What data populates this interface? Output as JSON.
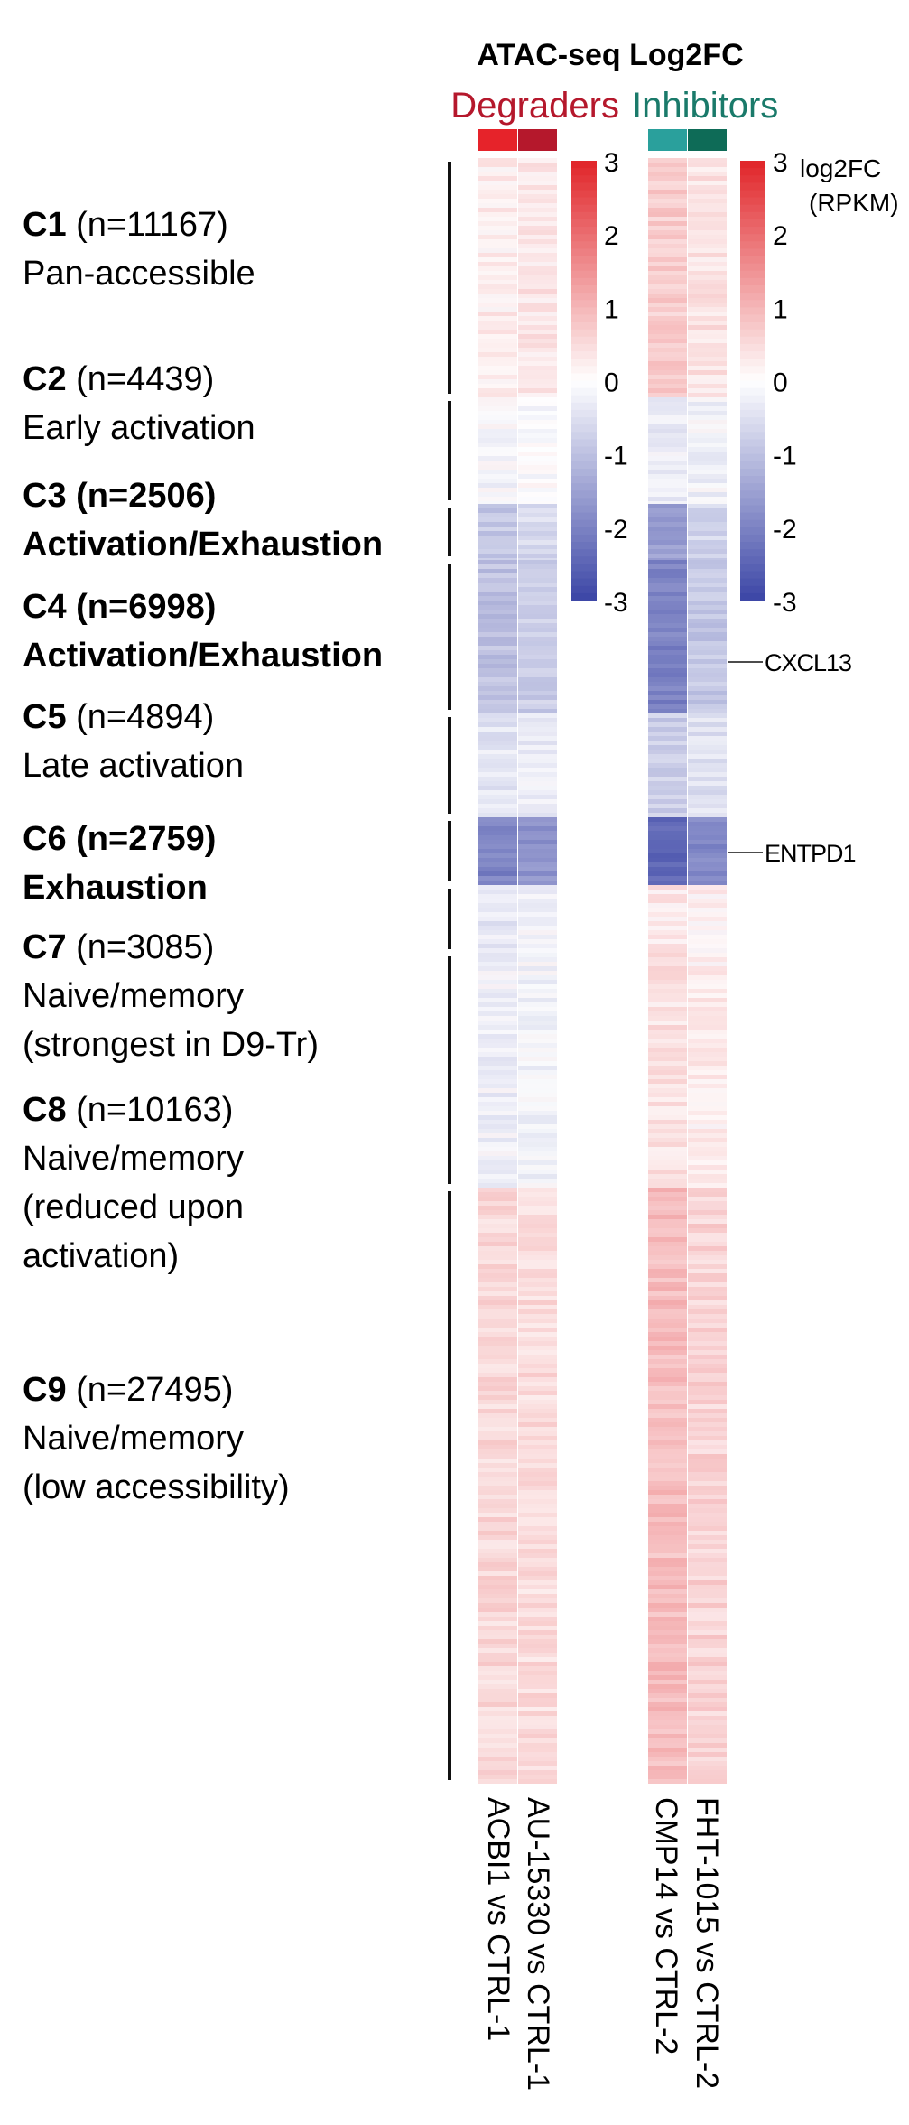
{
  "chart_data": {
    "type": "heatmap",
    "title": "ATAC-seq Log2FC",
    "groups": [
      {
        "name": "Degraders",
        "color": "#b5182c",
        "columns": [
          "ACBI1 vs CTRL-1",
          "AU-15330 vs CTRL-1"
        ],
        "bar_colors": [
          "#e6232a",
          "#b5182c"
        ]
      },
      {
        "name": "Inhibitors",
        "color": "#1a7a6a",
        "columns": [
          "CMP14 vs CTRL-2",
          "FHT-1015 vs CTRL-2"
        ],
        "bar_colors": [
          "#2aa09c",
          "#0e6b57"
        ]
      }
    ],
    "colorbar": {
      "label": "log2FC",
      "unit": "(RPKM)",
      "range": [
        -3,
        3
      ],
      "ticks": [
        "3",
        "2",
        "1",
        "0",
        "-1",
        "-2",
        "-3"
      ],
      "colors": {
        "high": "#e02428",
        "mid": "#ffffff",
        "low": "#3b45a6"
      }
    },
    "clusters": [
      {
        "id": "C1",
        "n": "(n=11167)",
        "desc": [
          "Pan-accessible"
        ],
        "bold": false,
        "values": [
          0.25,
          0.35,
          0.7,
          0.4
        ]
      },
      {
        "id": "C2",
        "n": "(n=4439)",
        "desc": [
          "Early activation"
        ],
        "bold": false,
        "values": [
          -0.15,
          -0.05,
          -0.3,
          -0.2
        ]
      },
      {
        "id": "C3",
        "n": "(n=2506)",
        "desc": [
          "Activation/Exhaustion"
        ],
        "bold": true,
        "values": [
          -0.9,
          -0.6,
          -1.5,
          -0.7
        ]
      },
      {
        "id": "C4",
        "n": "(n=6998)",
        "desc": [
          "Activation/Exhaustion"
        ],
        "bold": true,
        "values": [
          -1.0,
          -0.8,
          -2.0,
          -0.9
        ]
      },
      {
        "id": "C5",
        "n": "(n=4894)",
        "desc": [
          "Late activation"
        ],
        "bold": false,
        "values": [
          -0.4,
          -0.3,
          -0.8,
          -0.5
        ]
      },
      {
        "id": "C6",
        "n": "(n=2759)",
        "desc": [
          "Exhaustion"
        ],
        "bold": true,
        "values": [
          -2.0,
          -1.7,
          -2.4,
          -1.9
        ]
      },
      {
        "id": "C7",
        "n": "(n=3085)",
        "desc": [
          "Naive/memory",
          "(strongest in D9-Tr)"
        ],
        "bold": false,
        "values": [
          -0.35,
          -0.25,
          0.3,
          0.2
        ]
      },
      {
        "id": "C8",
        "n": "(n=10163)",
        "desc": [
          "Naive/memory",
          "(reduced upon",
          "activation)"
        ],
        "bold": false,
        "values": [
          -0.25,
          -0.2,
          0.4,
          0.25
        ]
      },
      {
        "id": "C9",
        "n": "(n=27495)",
        "desc": [
          "Naive/memory",
          "(low accessibility)"
        ],
        "bold": false,
        "values": [
          0.55,
          0.5,
          0.9,
          0.6
        ]
      }
    ],
    "annotations": [
      {
        "text": "CXCL13",
        "cluster": "C4"
      },
      {
        "text": "ENTPD1",
        "cluster": "C6"
      }
    ]
  }
}
